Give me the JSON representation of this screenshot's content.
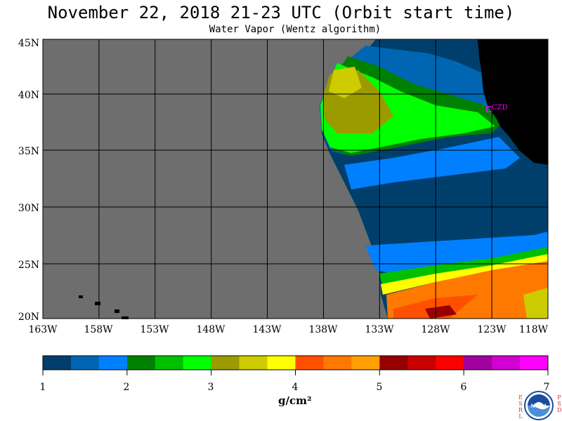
{
  "header": {
    "title": "November 22, 2018  21-23 UTC  (Orbit start time)",
    "subtitle": "Water Vapor (Wentz algorithm)"
  },
  "map": {
    "lat_labels": [
      "45N",
      "40N",
      "35N",
      "30N",
      "25N",
      "20N"
    ],
    "lon_labels": [
      "163W",
      "158W",
      "153W",
      "148W",
      "143W",
      "138W",
      "133W",
      "128W",
      "123W",
      "118W"
    ],
    "station_label": "CZD",
    "colors": {
      "no_data": "#6e6e6e",
      "land": "#000000",
      "station": "#ff00ff",
      "grid": "#000000"
    }
  },
  "colorbar": {
    "colors": [
      "#003f6b",
      "#0066b3",
      "#0080ff",
      "#008000",
      "#00c000",
      "#00ff00",
      "#9b9b00",
      "#cccc00",
      "#ffff00",
      "#ff5000",
      "#ff7800",
      "#ffa000",
      "#960000",
      "#c80000",
      "#ff0000",
      "#a000a0",
      "#d200d2",
      "#ff00ff"
    ],
    "tick_labels": [
      "1",
      "2",
      "3",
      "4",
      "5",
      "6",
      "7"
    ],
    "unit_label": "g/cm²"
  },
  "logo": {
    "left_text": "ESRL",
    "right_text": "PSD",
    "emblem_text": "NOAA"
  }
}
